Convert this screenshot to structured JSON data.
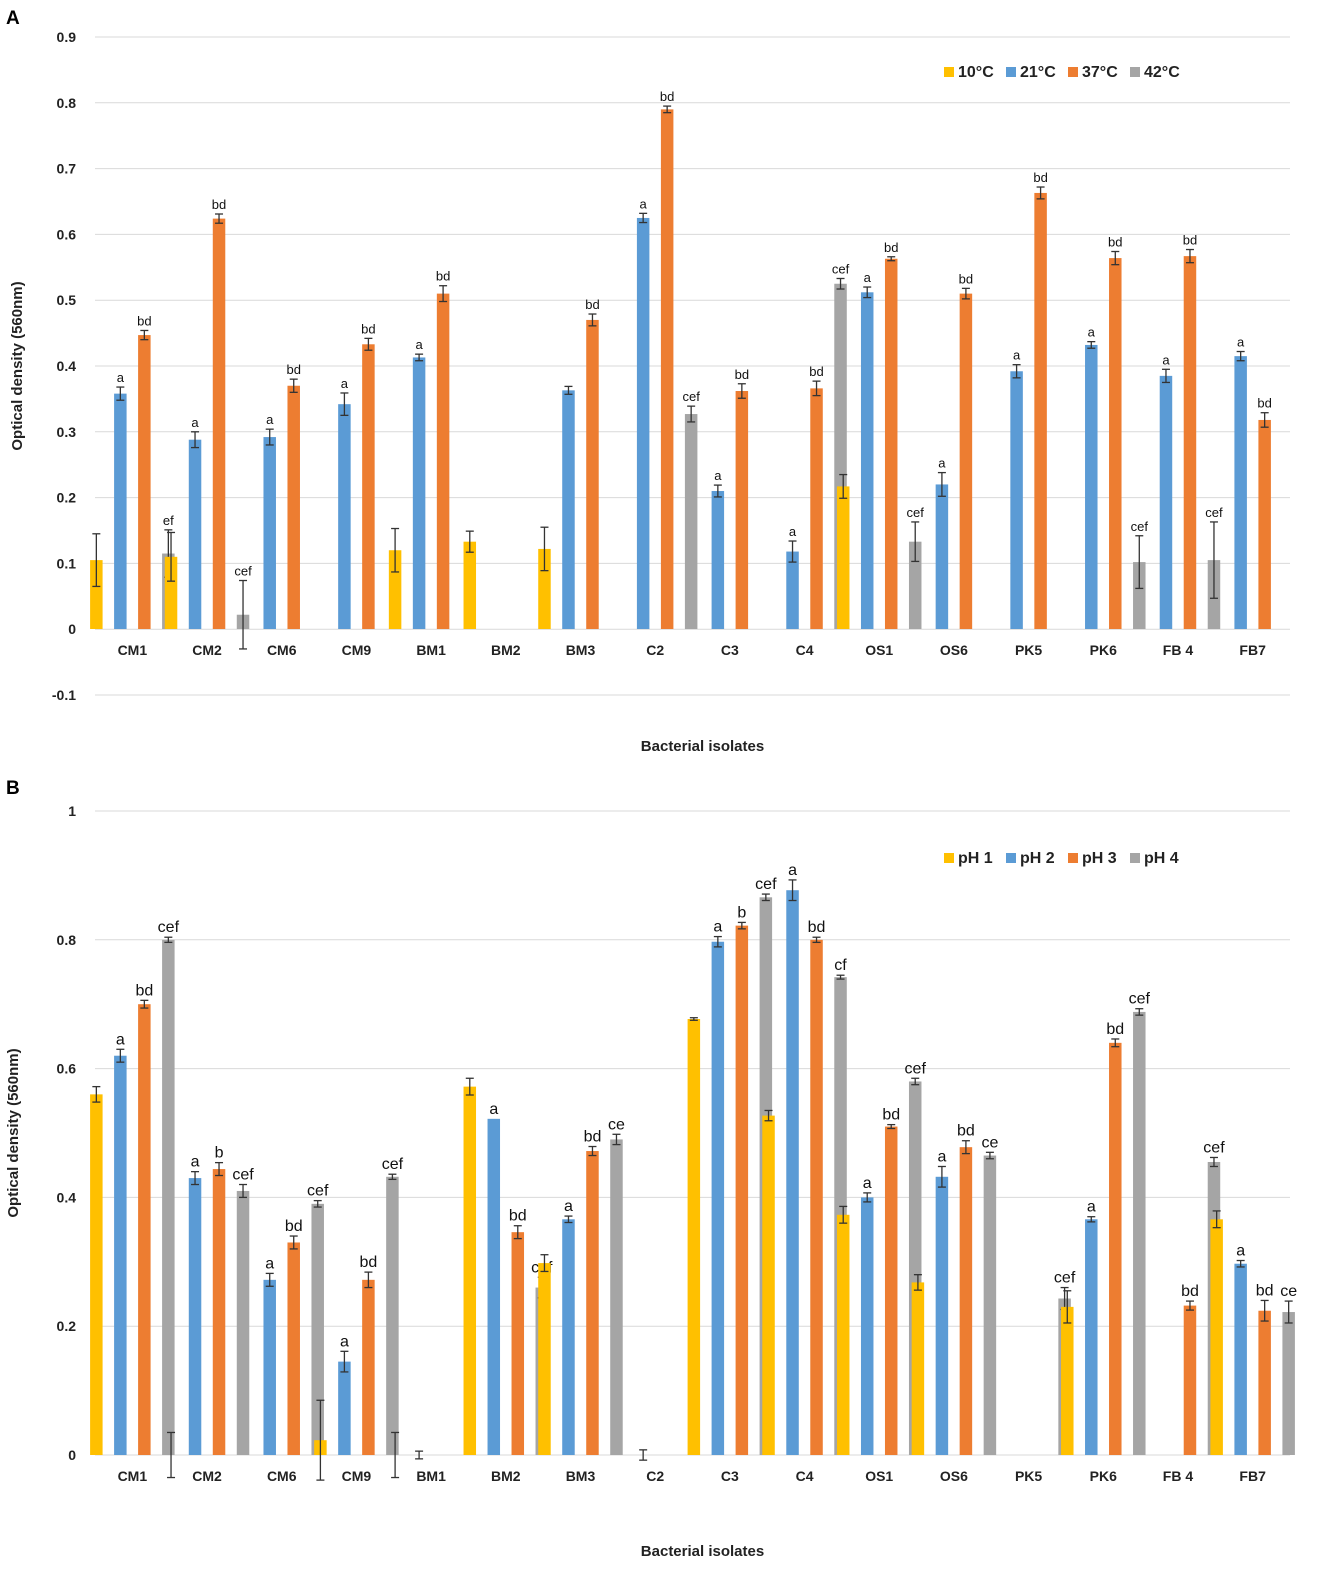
{
  "chart_data": [
    {
      "panel": "A",
      "type": "bar",
      "title": "",
      "xlabel": "Bacterial isolates",
      "ylabel": "Optical density (560nm)",
      "ylim": [
        -0.1,
        0.9
      ],
      "yticks": [
        "-0.1",
        "0",
        "0.1",
        "0.2",
        "0.3",
        "0.4",
        "0.5",
        "0.6",
        "0.7",
        "0.8",
        "0.9"
      ],
      "grid": true,
      "legend_position": "top-right",
      "categories": [
        "CM1",
        "CM2",
        "CM6",
        "CM9",
        "BM1",
        "BM2",
        "BM3",
        "C2",
        "C3",
        "C4",
        "OS1",
        "OS6",
        "PK5",
        "PK6",
        "FB 4",
        "FB7"
      ],
      "series": [
        {
          "name": "10°C",
          "color": "#FFC000",
          "values": [
            0.105,
            0.11,
            null,
            null,
            0.12,
            0.133,
            0.122,
            null,
            null,
            null,
            0.217,
            null,
            null,
            null,
            null,
            null
          ],
          "errors": [
            0.04,
            0.037,
            null,
            null,
            0.033,
            0.016,
            0.033,
            null,
            null,
            null,
            0.018,
            null,
            null,
            null,
            null,
            null
          ],
          "labels": [
            "",
            "",
            "",
            "",
            "",
            "",
            "",
            "",
            "",
            "",
            "",
            "",
            "",
            "",
            "",
            ""
          ]
        },
        {
          "name": "21°C",
          "color": "#5B9BD5",
          "values": [
            0.358,
            0.288,
            0.292,
            0.342,
            0.413,
            null,
            0.363,
            0.625,
            0.21,
            0.118,
            0.512,
            0.22,
            0.392,
            0.432,
            0.385,
            0.415
          ],
          "errors": [
            0.01,
            0.012,
            0.012,
            0.017,
            0.005,
            null,
            0.006,
            0.007,
            0.009,
            0.016,
            0.008,
            0.018,
            0.01,
            0.005,
            0.01,
            0.007
          ],
          "labels": [
            "a",
            "a",
            "a",
            "a",
            "a",
            "",
            "",
            "a",
            "a",
            "a",
            "a",
            "a",
            "a",
            "a",
            "a",
            "a"
          ]
        },
        {
          "name": "37°C",
          "color": "#ED7D31",
          "values": [
            0.447,
            0.624,
            0.37,
            0.433,
            0.51,
            null,
            0.47,
            0.79,
            0.362,
            0.366,
            0.563,
            0.51,
            0.663,
            0.564,
            0.567,
            0.318
          ],
          "errors": [
            0.007,
            0.007,
            0.01,
            0.009,
            0.012,
            null,
            0.009,
            0.005,
            0.011,
            0.011,
            0.003,
            0.008,
            0.009,
            0.01,
            0.01,
            0.011
          ],
          "labels": [
            "bd",
            "bd",
            "bd",
            "bd",
            "bd",
            "",
            "bd",
            "bd",
            "bd",
            "bd",
            "bd",
            "bd",
            "bd",
            "bd",
            "bd",
            "bd"
          ]
        },
        {
          "name": "42°C",
          "color": "#A5A5A5",
          "values": [
            0.115,
            0.022,
            null,
            null,
            null,
            null,
            null,
            0.327,
            null,
            0.525,
            0.133,
            null,
            null,
            0.102,
            0.105,
            null
          ],
          "errors": [
            0.036,
            0.052,
            null,
            null,
            null,
            null,
            null,
            0.012,
            null,
            0.008,
            0.03,
            null,
            null,
            0.04,
            0.058,
            null
          ],
          "labels": [
            "ef",
            "cef",
            "",
            "",
            "",
            "",
            "",
            "cef",
            "",
            "cef",
            "cef",
            "",
            "",
            "cef",
            "cef",
            ""
          ]
        }
      ]
    },
    {
      "panel": "B",
      "type": "bar",
      "title": "",
      "xlabel": "Bacterial isolates",
      "ylabel": "Optical density (560nm)",
      "ylim": [
        0,
        1
      ],
      "yticks": [
        "0",
        "0.2",
        "0.4",
        "0.6",
        "0.8",
        "1"
      ],
      "grid": true,
      "legend_position": "top-right",
      "categories": [
        "CM1",
        "CM2",
        "CM6",
        "CM9",
        "BM1",
        "BM2",
        "BM3",
        "C2",
        "C3",
        "C4",
        "OS1",
        "OS6",
        "PK5",
        "PK6",
        "FB 4",
        "FB7"
      ],
      "series": [
        {
          "name": "pH 1",
          "color": "#FFC000",
          "values": [
            0.56,
            0.0,
            null,
            0.023,
            0.0,
            0.572,
            0.298,
            null,
            0.677,
            0.527,
            0.373,
            0.268,
            null,
            0.23,
            null,
            0.366
          ],
          "errors": [
            0.012,
            0.035,
            null,
            0.062,
            0.035,
            0.013,
            0.013,
            null,
            0.002,
            0.008,
            0.013,
            0.012,
            null,
            0.025,
            null,
            0.013
          ],
          "labels": [
            "",
            "",
            "",
            "",
            "",
            "",
            "",
            "",
            "",
            "",
            "",
            "",
            "",
            "",
            "",
            ""
          ]
        },
        {
          "name": "pH 2",
          "color": "#5B9BD5",
          "values": [
            0.62,
            0.43,
            0.272,
            0.145,
            0.0,
            0.522,
            0.366,
            0.0,
            0.797,
            0.877,
            0.4,
            0.432,
            null,
            0.366,
            null,
            0.297
          ],
          "errors": [
            0.01,
            0.01,
            0.01,
            0.016,
            0.006,
            0.0,
            0.005,
            0.008,
            0.008,
            0.016,
            0.007,
            0.016,
            null,
            0.004,
            null,
            0.005
          ],
          "labels": [
            "a",
            "a",
            "a",
            "a",
            "",
            "a",
            "a",
            "",
            "a",
            "a",
            "a",
            "a",
            "",
            "a",
            "",
            "a"
          ]
        },
        {
          "name": "pH 3",
          "color": "#ED7D31",
          "values": [
            0.7,
            0.444,
            0.33,
            0.272,
            null,
            0.346,
            0.472,
            null,
            0.822,
            0.8,
            0.51,
            0.478,
            null,
            0.64,
            0.232,
            0.224
          ],
          "errors": [
            0.006,
            0.01,
            0.01,
            0.012,
            null,
            0.01,
            0.007,
            null,
            0.005,
            0.004,
            0.003,
            0.01,
            null,
            0.006,
            0.007,
            0.016
          ],
          "labels": [
            "bd",
            "b",
            "bd",
            "bd",
            "",
            "bd",
            "bd",
            "",
            "b",
            "bd",
            "bd",
            "bd",
            "",
            "bd",
            "bd",
            "bd"
          ]
        },
        {
          "name": "pH 4",
          "color": "#A5A5A5",
          "values": [
            0.8,
            0.41,
            0.39,
            0.432,
            null,
            0.26,
            0.49,
            null,
            0.866,
            0.742,
            0.58,
            0.465,
            0.243,
            0.688,
            0.455,
            0.222
          ],
          "errors": [
            0.004,
            0.01,
            0.005,
            0.004,
            null,
            0.016,
            0.008,
            null,
            0.005,
            0.003,
            0.005,
            0.005,
            0.017,
            0.005,
            0.007,
            0.017
          ],
          "labels": [
            "cef",
            "cef",
            "cef",
            "cef",
            "",
            "cef",
            "ce",
            "",
            "cef",
            "cf",
            "cef",
            "ce",
            "cef",
            "cef",
            "cef",
            "ce"
          ]
        }
      ]
    }
  ],
  "panel_labels": [
    "A",
    "B"
  ]
}
